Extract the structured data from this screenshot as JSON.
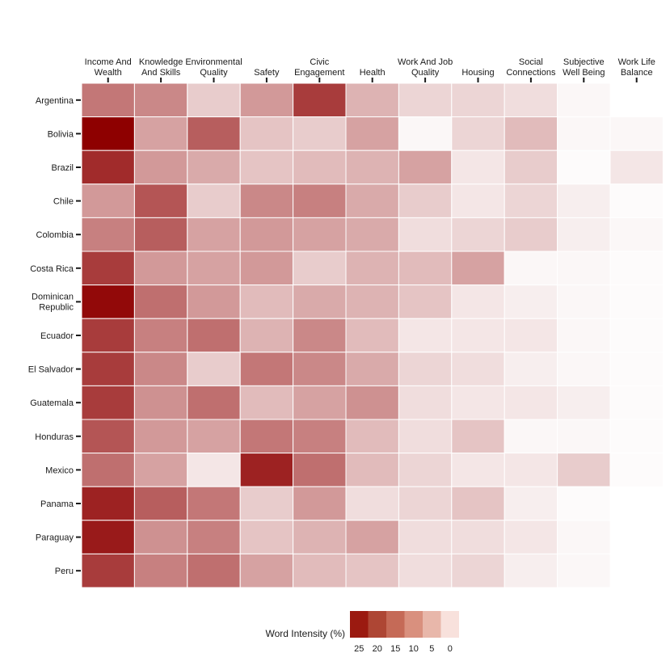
{
  "chart_data": {
    "type": "heatmap",
    "title": "",
    "columns": [
      [
        "Income And",
        "Wealth"
      ],
      [
        "Knowledge",
        "And Skills"
      ],
      [
        "Environmental",
        "Quality"
      ],
      [
        "Safety"
      ],
      [
        "Civic",
        "Engagement"
      ],
      [
        "Health"
      ],
      [
        "Work And Job",
        "Quality"
      ],
      [
        "Housing"
      ],
      [
        "Social",
        "Connections"
      ],
      [
        "Subjective",
        "Well Being"
      ],
      [
        "Work Life",
        "Balance"
      ]
    ],
    "rows": [
      [
        "Argentina"
      ],
      [
        "Bolivia"
      ],
      [
        "Brazil"
      ],
      [
        "Chile"
      ],
      [
        "Colombia"
      ],
      [
        "Costa Rica"
      ],
      [
        "Dominican",
        "Republic"
      ],
      [
        "Ecuador"
      ],
      [
        "El Salvador"
      ],
      [
        "Guatemala"
      ],
      [
        "Honduras"
      ],
      [
        "Mexico"
      ],
      [
        "Panama"
      ],
      [
        "Paraguay"
      ],
      [
        "Peru"
      ]
    ],
    "values": [
      [
        16,
        14,
        6,
        12,
        23,
        9,
        5,
        5,
        4,
        1,
        0
      ],
      [
        30,
        11,
        19,
        7,
        6,
        11,
        1,
        5,
        8,
        1,
        1
      ],
      [
        25,
        12,
        10,
        7,
        8,
        9,
        11,
        3,
        6,
        0.5,
        3
      ],
      [
        12,
        20,
        6,
        14,
        15,
        10,
        6,
        3,
        5,
        2,
        0.5
      ],
      [
        15,
        19,
        11,
        12,
        11,
        10,
        4,
        5,
        6,
        2,
        1
      ],
      [
        23,
        12,
        11,
        12,
        6,
        9,
        8,
        11,
        1,
        1,
        0.5
      ],
      [
        29,
        17,
        12,
        8,
        10,
        9,
        7,
        3,
        2,
        1,
        0.5
      ],
      [
        23,
        15,
        17,
        9,
        14,
        8,
        3,
        3,
        3,
        1,
        0.5
      ],
      [
        23,
        14,
        6,
        16,
        14,
        10,
        5,
        4,
        2,
        1,
        0.5
      ],
      [
        23,
        13,
        17,
        8,
        11,
        13,
        4,
        3,
        3,
        2,
        0.5
      ],
      [
        20,
        12,
        11,
        16,
        15,
        8,
        4,
        7,
        1,
        1,
        0.5
      ],
      [
        17,
        11,
        3,
        26,
        17,
        8,
        5,
        3,
        3,
        6,
        0.5
      ],
      [
        26,
        19,
        16,
        6,
        12,
        4,
        5,
        7,
        2,
        0.5,
        0
      ],
      [
        27,
        13,
        15,
        7,
        9,
        11,
        4,
        4,
        3,
        1,
        0
      ],
      [
        23,
        15,
        17,
        11,
        8,
        7,
        4,
        5,
        2,
        1,
        0
      ]
    ],
    "legend": {
      "title": "Word Intensity (%)",
      "ticks": [
        "25",
        "20",
        "15",
        "10",
        "5",
        "0"
      ],
      "colors": [
        "#9b1a10",
        "#ae4634",
        "#c56a57",
        "#d9907e",
        "#e8b7aa",
        "#f8e1dc"
      ]
    },
    "color_scale": {
      "min": 0,
      "max": 30,
      "low_color": "#ffffff",
      "high_color": "#8e0000"
    },
    "grid_line_color": "#ffffff"
  }
}
